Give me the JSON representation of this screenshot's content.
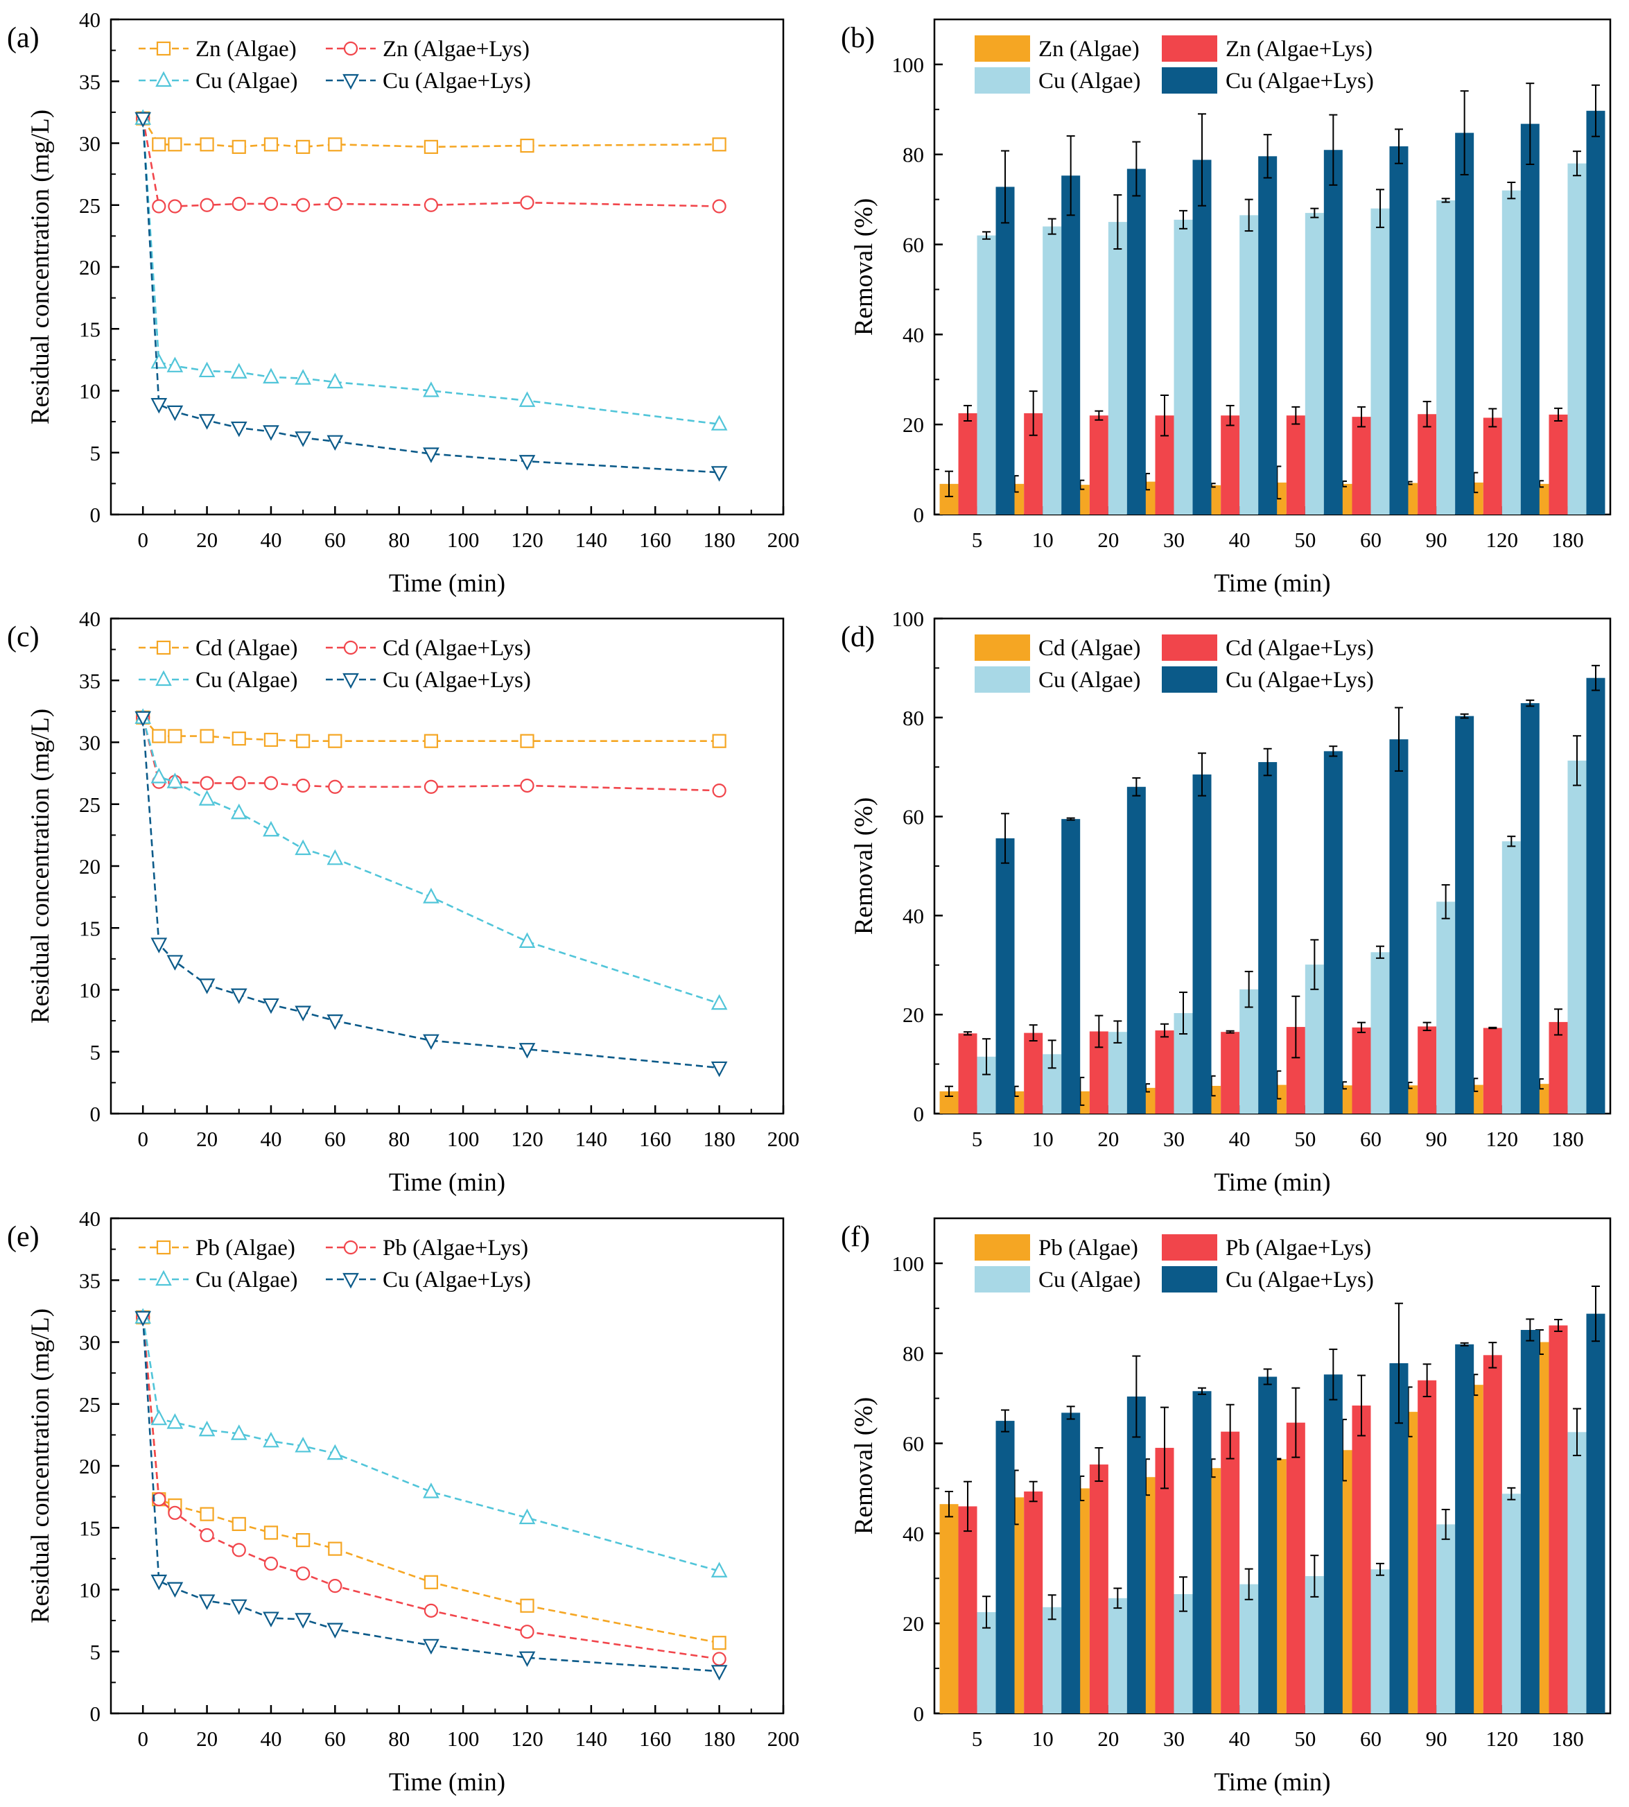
{
  "colors": {
    "orange": "#f5a623",
    "red": "#f1454b",
    "light_blue": "#51c5d9",
    "light_blue_bar": "#a8d8e6",
    "dark_blue": "#0b5a89"
  },
  "chart_data": [
    {
      "panel": "(a)",
      "type": "line",
      "xlabel": "Time (min)",
      "ylabel": "Residual concentration (mg/L)",
      "xlim": [
        -10,
        200
      ],
      "ylim": [
        0,
        40
      ],
      "xticks": [
        0,
        20,
        40,
        60,
        80,
        100,
        120,
        140,
        160,
        180,
        200
      ],
      "yticks": [
        0,
        5,
        10,
        15,
        20,
        25,
        30,
        35,
        40
      ],
      "x": [
        0,
        5,
        10,
        20,
        30,
        40,
        50,
        60,
        90,
        120,
        180
      ],
      "series": [
        {
          "name": "Zn (Algae)",
          "color": "#f5a623",
          "marker": "square",
          "values": [
            32,
            29.9,
            29.9,
            29.9,
            29.7,
            29.9,
            29.7,
            29.9,
            29.7,
            29.8,
            29.9
          ]
        },
        {
          "name": "Zn (Algae+Lys)",
          "color": "#f1454b",
          "marker": "circle",
          "values": [
            32,
            24.9,
            24.9,
            25.0,
            25.1,
            25.1,
            25.0,
            25.1,
            25.0,
            25.2,
            24.9
          ]
        },
        {
          "name": "Cu (Algae)",
          "color": "#51c5d9",
          "marker": "triangle-up",
          "values": [
            32,
            12.3,
            12.0,
            11.6,
            11.5,
            11.1,
            11.0,
            10.7,
            10.0,
            9.2,
            7.3
          ]
        },
        {
          "name": "Cu (Algae+Lys)",
          "color": "#0b5a89",
          "marker": "triangle-down",
          "values": [
            32,
            8.9,
            8.3,
            7.6,
            7.0,
            6.7,
            6.2,
            5.9,
            4.9,
            4.3,
            3.4
          ]
        }
      ]
    },
    {
      "panel": "(b)",
      "type": "bar",
      "xlabel": "Time (min)",
      "ylabel": "Removal (%)",
      "ylim": [
        0,
        110
      ],
      "yticks": [
        0,
        20,
        40,
        60,
        80,
        100
      ],
      "categories": [
        "5",
        "10",
        "20",
        "30",
        "40",
        "50",
        "60",
        "90",
        "120",
        "180"
      ],
      "series": [
        {
          "name": "Zn (Algae)",
          "color": "#f5a623",
          "values": [
            6.8,
            6.8,
            6.6,
            7.3,
            6.5,
            7.1,
            6.8,
            7.0,
            7.1,
            6.8
          ],
          "errors": [
            2.8,
            1.8,
            1.0,
            1.8,
            0.4,
            3.6,
            0.6,
            0.3,
            2.2,
            0.7
          ]
        },
        {
          "name": "Zn (Algae+Lys)",
          "color": "#f1454b",
          "values": [
            22.5,
            22.5,
            22.0,
            22.0,
            22.0,
            22.0,
            21.7,
            22.3,
            21.5,
            22.2
          ],
          "errors": [
            1.7,
            4.9,
            1.0,
            4.5,
            2.2,
            1.9,
            2.2,
            2.8,
            2.0,
            1.4
          ]
        },
        {
          "name": "Cu (Algae)",
          "color": "#a8d8e6",
          "values": [
            62.0,
            64.0,
            65.0,
            65.5,
            66.5,
            67.0,
            68.0,
            69.8,
            72.0,
            78.0
          ],
          "errors": [
            0.8,
            1.7,
            6.0,
            2.0,
            3.5,
            1.0,
            4.2,
            0.4,
            1.8,
            2.7
          ]
        },
        {
          "name": "Cu (Algae+Lys)",
          "color": "#0b5a89",
          "values": [
            72.8,
            75.3,
            76.8,
            78.8,
            79.6,
            81.0,
            81.8,
            84.8,
            86.8,
            89.7
          ],
          "errors": [
            8.0,
            8.8,
            6.0,
            10.2,
            4.8,
            7.8,
            3.8,
            9.3,
            9.0,
            5.7
          ]
        }
      ]
    },
    {
      "panel": "(c)",
      "type": "line",
      "xlabel": "Time (min)",
      "ylabel": "Residual concentration (mg/L)",
      "xlim": [
        -10,
        200
      ],
      "ylim": [
        0,
        40
      ],
      "xticks": [
        0,
        20,
        40,
        60,
        80,
        100,
        120,
        140,
        160,
        180,
        200
      ],
      "yticks": [
        0,
        5,
        10,
        15,
        20,
        25,
        30,
        35,
        40
      ],
      "x": [
        0,
        5,
        10,
        20,
        30,
        40,
        50,
        60,
        90,
        120,
        180
      ],
      "series": [
        {
          "name": "Cd (Algae)",
          "color": "#f5a623",
          "marker": "square",
          "values": [
            32,
            30.5,
            30.5,
            30.5,
            30.3,
            30.2,
            30.1,
            30.1,
            30.1,
            30.1,
            30.1
          ]
        },
        {
          "name": "Cd (Algae+Lys)",
          "color": "#f1454b",
          "marker": "circle",
          "values": [
            32,
            26.8,
            26.8,
            26.7,
            26.7,
            26.7,
            26.5,
            26.4,
            26.4,
            26.5,
            26.1
          ]
        },
        {
          "name": "Cu (Algae)",
          "color": "#51c5d9",
          "marker": "triangle-up",
          "values": [
            32,
            27.2,
            26.8,
            25.4,
            24.3,
            22.9,
            21.4,
            20.6,
            17.5,
            13.9,
            8.9
          ]
        },
        {
          "name": "Cu (Algae+Lys)",
          "color": "#0b5a89",
          "marker": "triangle-down",
          "values": [
            32,
            13.7,
            12.3,
            10.4,
            9.6,
            8.8,
            8.2,
            7.5,
            5.9,
            5.2,
            3.7
          ]
        }
      ]
    },
    {
      "panel": "(d)",
      "type": "bar",
      "xlabel": "Time (min)",
      "ylabel": "Removal (%)",
      "ylim": [
        0,
        100
      ],
      "yticks": [
        0,
        20,
        40,
        60,
        80,
        100
      ],
      "categories": [
        "5",
        "10",
        "20",
        "30",
        "40",
        "50",
        "60",
        "90",
        "120",
        "180"
      ],
      "series": [
        {
          "name": "Cd (Algae)",
          "color": "#f5a623",
          "values": [
            4.5,
            4.5,
            4.5,
            5.2,
            5.6,
            5.8,
            5.7,
            5.7,
            5.8,
            6.0
          ],
          "errors": [
            1.0,
            1.0,
            2.8,
            0.8,
            2.0,
            2.8,
            0.7,
            0.6,
            1.3,
            1.0
          ]
        },
        {
          "name": "Cd (Algae+Lys)",
          "color": "#f1454b",
          "values": [
            16.2,
            16.3,
            16.6,
            16.8,
            16.5,
            17.5,
            17.4,
            17.6,
            17.3,
            18.5
          ],
          "errors": [
            0.3,
            1.6,
            3.2,
            1.3,
            0.2,
            6.2,
            1.0,
            0.8,
            0.1,
            2.6
          ]
        },
        {
          "name": "Cu (Algae)",
          "color": "#a8d8e6",
          "values": [
            11.5,
            12.0,
            16.5,
            20.3,
            25.1,
            30.1,
            32.6,
            42.8,
            55.0,
            71.3
          ],
          "errors": [
            3.6,
            2.8,
            2.2,
            4.2,
            3.6,
            5.0,
            1.2,
            3.4,
            1.0,
            5.0
          ]
        },
        {
          "name": "Cu (Algae+Lys)",
          "color": "#0b5a89",
          "values": [
            55.6,
            59.5,
            66.0,
            68.5,
            71.0,
            73.2,
            75.6,
            80.3,
            82.9,
            88.0
          ],
          "errors": [
            5.0,
            0.2,
            1.8,
            4.3,
            2.7,
            1.0,
            6.4,
            0.4,
            0.6,
            2.5
          ]
        }
      ]
    },
    {
      "panel": "(e)",
      "type": "line",
      "xlabel": "Time (min)",
      "ylabel": "Residual concentration (mg/L)",
      "xlim": [
        -10,
        200
      ],
      "ylim": [
        0,
        40
      ],
      "xticks": [
        0,
        20,
        40,
        60,
        80,
        100,
        120,
        140,
        160,
        180,
        200
      ],
      "yticks": [
        0,
        5,
        10,
        15,
        20,
        25,
        30,
        35,
        40
      ],
      "x": [
        0,
        5,
        10,
        20,
        30,
        40,
        50,
        60,
        90,
        120,
        180
      ],
      "series": [
        {
          "name": "Pb (Algae)",
          "color": "#f5a623",
          "marker": "square",
          "values": [
            32,
            17.3,
            16.8,
            16.1,
            15.3,
            14.6,
            14.0,
            13.3,
            10.6,
            8.7,
            5.7
          ]
        },
        {
          "name": "Pb (Algae+Lys)",
          "color": "#f1454b",
          "marker": "circle",
          "values": [
            32,
            17.3,
            16.2,
            14.4,
            13.2,
            12.1,
            11.3,
            10.3,
            8.3,
            6.6,
            4.4
          ]
        },
        {
          "name": "Cu (Algae)",
          "color": "#51c5d9",
          "marker": "triangle-up",
          "values": [
            32,
            23.8,
            23.5,
            22.9,
            22.6,
            22.0,
            21.6,
            21.0,
            17.9,
            15.8,
            11.5
          ]
        },
        {
          "name": "Cu (Algae+Lys)",
          "color": "#0b5a89",
          "marker": "triangle-down",
          "values": [
            32,
            10.7,
            10.1,
            9.1,
            8.7,
            7.7,
            7.6,
            6.8,
            5.5,
            4.5,
            3.4
          ]
        }
      ]
    },
    {
      "panel": "(f)",
      "type": "bar",
      "xlabel": "Time (min)",
      "ylabel": "Removal (%)",
      "ylim": [
        0,
        110
      ],
      "yticks": [
        0,
        20,
        40,
        60,
        80,
        100
      ],
      "categories": [
        "5",
        "10",
        "20",
        "30",
        "40",
        "50",
        "60",
        "90",
        "120",
        "180"
      ],
      "series": [
        {
          "name": "Pb (Algae)",
          "color": "#f5a623",
          "values": [
            46.5,
            48.0,
            50.0,
            52.5,
            54.5,
            56.5,
            58.5,
            67.0,
            73.0,
            82.5
          ],
          "errors": [
            2.8,
            6.0,
            2.7,
            4.0,
            2.0,
            0.1,
            6.8,
            5.5,
            2.3,
            2.7
          ]
        },
        {
          "name": "Pb (Algae+Lys)",
          "color": "#f1454b",
          "values": [
            46.0,
            49.3,
            55.3,
            59.0,
            62.6,
            64.6,
            68.4,
            74.0,
            79.6,
            86.2
          ],
          "errors": [
            5.5,
            2.2,
            3.7,
            9.0,
            6.0,
            7.7,
            6.7,
            3.6,
            2.8,
            1.3
          ]
        },
        {
          "name": "Cu (Algae)",
          "color": "#a8d8e6",
          "values": [
            22.5,
            23.6,
            25.6,
            26.5,
            28.7,
            30.5,
            32.0,
            42.0,
            48.8,
            62.5
          ],
          "errors": [
            3.5,
            2.7,
            2.2,
            3.8,
            3.4,
            4.6,
            1.3,
            3.3,
            1.3,
            5.2
          ]
        },
        {
          "name": "Cu (Algae+Lys)",
          "color": "#0b5a89",
          "values": [
            65.0,
            66.8,
            70.4,
            71.6,
            74.8,
            75.3,
            77.8,
            82.0,
            85.2,
            88.8
          ],
          "errors": [
            2.4,
            1.4,
            9.0,
            0.7,
            1.7,
            5.6,
            13.3,
            0.3,
            2.4,
            6.1
          ]
        }
      ]
    }
  ]
}
